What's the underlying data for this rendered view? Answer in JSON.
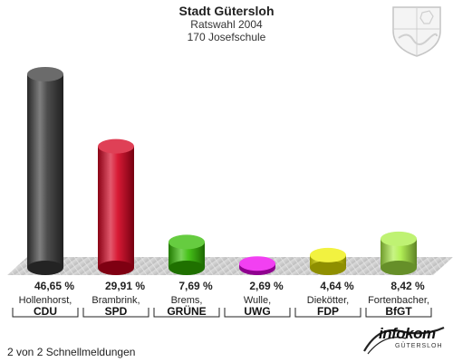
{
  "header": {
    "title": "Stadt Gütersloh",
    "subtitle": "Ratswahl 2004",
    "district": "170 Josefschule"
  },
  "footer": {
    "status": "2 von 2 Schnellmeldungen",
    "brand_name": "infokom",
    "brand_sub": "GÜTERSLOH"
  },
  "crest_icon": "nrw-coat-of-arms-icon",
  "chart_data": {
    "type": "bar",
    "title": "Stadt Gütersloh",
    "subtitle": "Ratswahl 2004",
    "xlabel": "",
    "ylabel": "",
    "ylim": [
      0,
      50
    ],
    "grid": false,
    "legend": "none",
    "categories": [
      "CDU",
      "SPD",
      "GRÜNE",
      "UWG",
      "FDP",
      "BfGT"
    ],
    "candidates": [
      "Hollenhorst,",
      "Brambrink,",
      "Brems,",
      "Wulle,",
      "Diekötter,",
      "Fortenbacher,"
    ],
    "values": [
      46.65,
      29.91,
      7.69,
      2.69,
      4.64,
      8.42
    ],
    "value_labels": [
      "46,65 %",
      "29,91 %",
      "7,69 %",
      "2,69 %",
      "4,64 %",
      "8,42 %"
    ],
    "colors": [
      "#3a3a3a",
      "#d4001e",
      "#33bb00",
      "#ee00ee",
      "#eeee00",
      "#aaee44"
    ]
  }
}
